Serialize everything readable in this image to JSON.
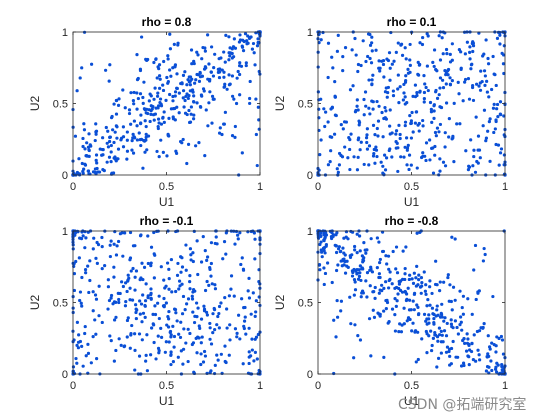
{
  "watermark": "CSDN @拓端研究室",
  "chart_data": [
    {
      "type": "scatter",
      "title": "rho = 0.8",
      "xlabel": "U1",
      "ylabel": "U2",
      "xlim": [
        0,
        1
      ],
      "ylim": [
        0,
        1
      ],
      "xticks": [
        "0",
        "0.5",
        "1"
      ],
      "yticks": [
        "0",
        "0.5",
        "1"
      ],
      "grid": false,
      "color": "#0a4fd6",
      "rho": 0.8,
      "n": 500
    },
    {
      "type": "scatter",
      "title": "rho = 0.1",
      "xlabel": "U1",
      "ylabel": "U2",
      "xlim": [
        0,
        1
      ],
      "ylim": [
        0,
        1
      ],
      "xticks": [
        "0",
        "0.5",
        "1"
      ],
      "yticks": [
        "0",
        "0.5",
        "1"
      ],
      "grid": false,
      "color": "#0a4fd6",
      "rho": 0.1,
      "n": 500
    },
    {
      "type": "scatter",
      "title": "rho = -0.1",
      "xlabel": "U1",
      "ylabel": "U2",
      "xlim": [
        0,
        1
      ],
      "ylim": [
        0,
        1
      ],
      "xticks": [
        "0",
        "0.5",
        "1"
      ],
      "yticks": [
        "0",
        "0.5",
        "1"
      ],
      "grid": false,
      "color": "#0a4fd6",
      "rho": -0.1,
      "n": 500
    },
    {
      "type": "scatter",
      "title": "rho = -0.8",
      "xlabel": "U1",
      "ylabel": "U2",
      "xlim": [
        0,
        1
      ],
      "ylim": [
        0,
        1
      ],
      "xticks": [
        "0",
        "0.5",
        "1"
      ],
      "yticks": [
        "0",
        "0.5",
        "1"
      ],
      "grid": false,
      "color": "#0a4fd6",
      "rho": -0.8,
      "n": 500
    }
  ]
}
